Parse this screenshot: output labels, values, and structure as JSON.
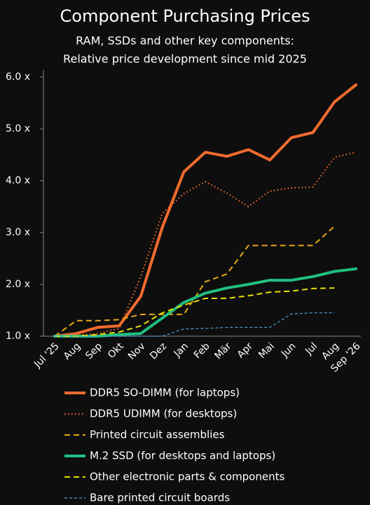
{
  "chart_data": {
    "type": "line",
    "title": "Component Purchasing Prices",
    "subtitle": [
      "RAM, SSDs and other key components:",
      "Relative price development since mid 2025"
    ],
    "categories": [
      "Jul '25",
      "Aug",
      "Sep",
      "Okt",
      "Nov",
      "Dez",
      "Jan",
      "Feb",
      "Mär",
      "Apr",
      "Mai",
      "Jun",
      "Jul",
      "Aug",
      "Sep '26"
    ],
    "ylim": [
      1,
      6
    ],
    "yticks": [
      {
        "value": 1,
        "label": "1.0 x"
      },
      {
        "value": 2,
        "label": "2.0 x"
      },
      {
        "value": 3,
        "label": "3.0 x"
      },
      {
        "value": 4,
        "label": "4.0 x"
      },
      {
        "value": 5,
        "label": "5.0 x"
      },
      {
        "value": 6,
        "label": "6.0 x"
      }
    ],
    "grid": false,
    "series": [
      {
        "name": "DDR5 SO-DIMM (for laptops)",
        "color": "#f26b2f",
        "style": "solid",
        "values": [
          1.0,
          1.05,
          1.17,
          1.2,
          1.77,
          3.1,
          4.17,
          4.55,
          4.47,
          4.6,
          4.4,
          4.83,
          4.93,
          5.52,
          5.85
        ]
      },
      {
        "name": "DDR5 UDIMM (for desktops)",
        "color": "#f26b2f",
        "style": "dotted",
        "values": [
          1.0,
          1.02,
          1.05,
          1.15,
          2.15,
          3.37,
          3.75,
          3.98,
          3.76,
          3.5,
          3.8,
          3.86,
          3.88,
          4.45,
          4.55
        ]
      },
      {
        "name": "Printed circuit assemblies",
        "color": "#e6a817",
        "style": "dashed",
        "values": [
          1.0,
          1.3,
          1.3,
          1.32,
          1.42,
          1.42,
          1.42,
          2.05,
          2.2,
          2.75,
          2.75,
          2.75,
          2.75,
          3.12,
          null
        ]
      },
      {
        "name": "M.2 SSD (for desktops and laptops)",
        "color": "#1fbf7f",
        "style": "solid",
        "values": [
          1.0,
          1.0,
          1.0,
          1.03,
          1.05,
          1.35,
          1.65,
          1.83,
          1.93,
          2.0,
          2.08,
          2.08,
          2.15,
          2.25,
          2.3
        ]
      },
      {
        "name": "Other electronic parts & components",
        "color": "#e5e000",
        "style": "dashed",
        "values": [
          1.0,
          1.0,
          1.03,
          1.08,
          1.2,
          1.45,
          1.6,
          1.73,
          1.73,
          1.78,
          1.85,
          1.87,
          1.92,
          1.93,
          null
        ]
      },
      {
        "name": "Bare printed circuit boards",
        "color": "#4aa3df",
        "style": "fine-dashed",
        "values": [
          1.0,
          1.0,
          1.0,
          1.0,
          1.0,
          1.0,
          1.14,
          1.15,
          1.17,
          1.17,
          1.17,
          1.43,
          1.45,
          1.45,
          null
        ]
      }
    ]
  }
}
